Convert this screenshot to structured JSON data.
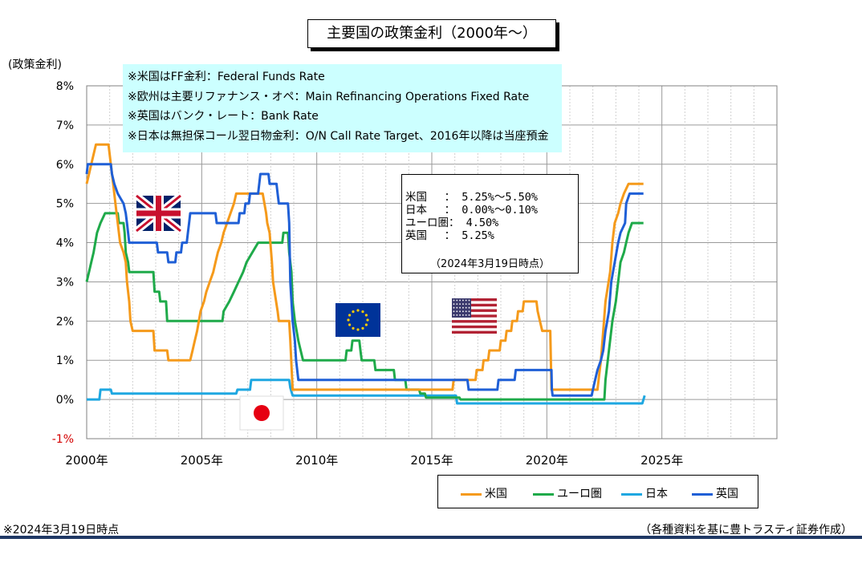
{
  "title": "主要国の政策金利（2000年～）",
  "notes": [
    "※米国はFF金利：Federal Funds Rate",
    "※欧州は主要リファナンス・オペ：Main Refinancing Operations Fixed Rate",
    "※英国はバンク・レート：Bank Rate",
    "※日本は無担保コール翌日物金利：O/N Call Rate Target、2016年以降は当座預金"
  ],
  "info_box": {
    "rows": [
      "米国　 ： 5.25%～5.50%",
      "日本　 ： 0.00%～0.10%",
      "ユーロ圏： 4.50%",
      "英国　 ： 5.25%"
    ],
    "date": "（2024年3月19日時点）"
  },
  "footer": {
    "left": "※2024年3月19日時点",
    "right": "（各種資料を基に豊トラスティ証券作成）"
  },
  "chart_data": {
    "type": "line",
    "title": "主要国の政策金利（2000年～）",
    "ylabel": "(政策金利)",
    "xlabel": "",
    "xlim": [
      2000,
      2030
    ],
    "ylim": [
      -1,
      8
    ],
    "x_ticks": [
      {
        "value": 2000,
        "label": "2000年"
      },
      {
        "value": 2005,
        "label": "2005年"
      },
      {
        "value": 2010,
        "label": "2010年"
      },
      {
        "value": 2015,
        "label": "2015年"
      },
      {
        "value": 2020,
        "label": "2020年"
      },
      {
        "value": 2025,
        "label": "2025年"
      }
    ],
    "y_ticks": [
      {
        "value": 8,
        "label": "8%"
      },
      {
        "value": 7,
        "label": "7%"
      },
      {
        "value": 6,
        "label": "6%"
      },
      {
        "value": 5,
        "label": "5%"
      },
      {
        "value": 4,
        "label": "4%"
      },
      {
        "value": 3,
        "label": "3%"
      },
      {
        "value": 2,
        "label": "2%"
      },
      {
        "value": 1,
        "label": "1%"
      },
      {
        "value": 0,
        "label": "0%"
      },
      {
        "value": -1,
        "label": "-1%"
      }
    ],
    "grid": true,
    "legend_position": "bottom-right",
    "series": [
      {
        "name": "米国",
        "color": "#f59a1b",
        "points": [
          [
            2000,
            5.5
          ],
          [
            2000.1,
            5.75
          ],
          [
            2000.2,
            6
          ],
          [
            2000.4,
            6.5
          ],
          [
            2000.95,
            6.5
          ],
          [
            2001.05,
            6
          ],
          [
            2001.15,
            5.5
          ],
          [
            2001.25,
            5
          ],
          [
            2001.35,
            4.5
          ],
          [
            2001.45,
            4
          ],
          [
            2001.6,
            3.75
          ],
          [
            2001.7,
            3.5
          ],
          [
            2001.75,
            3
          ],
          [
            2001.85,
            2.5
          ],
          [
            2001.9,
            2
          ],
          [
            2002,
            1.75
          ],
          [
            2002.9,
            1.75
          ],
          [
            2002.95,
            1.25
          ],
          [
            2003.5,
            1.25
          ],
          [
            2003.55,
            1
          ],
          [
            2004.5,
            1
          ],
          [
            2004.6,
            1.25
          ],
          [
            2004.7,
            1.5
          ],
          [
            2004.8,
            1.75
          ],
          [
            2004.95,
            2.25
          ],
          [
            2005.1,
            2.5
          ],
          [
            2005.2,
            2.75
          ],
          [
            2005.35,
            3
          ],
          [
            2005.5,
            3.25
          ],
          [
            2005.6,
            3.5
          ],
          [
            2005.7,
            3.75
          ],
          [
            2005.85,
            4
          ],
          [
            2005.95,
            4.25
          ],
          [
            2006.1,
            4.5
          ],
          [
            2006.25,
            4.75
          ],
          [
            2006.4,
            5
          ],
          [
            2006.5,
            5.25
          ],
          [
            2007.65,
            5.25
          ],
          [
            2007.8,
            4.75
          ],
          [
            2007.85,
            4.5
          ],
          [
            2007.95,
            4.25
          ],
          [
            2008.05,
            3.5
          ],
          [
            2008.1,
            3
          ],
          [
            2008.3,
            2.25
          ],
          [
            2008.35,
            2
          ],
          [
            2008.8,
            2
          ],
          [
            2008.85,
            1.5
          ],
          [
            2008.95,
            0.25
          ],
          [
            2015.9,
            0.25
          ],
          [
            2015.95,
            0.5
          ],
          [
            2016.9,
            0.5
          ],
          [
            2016.95,
            0.75
          ],
          [
            2017.2,
            0.75
          ],
          [
            2017.25,
            1
          ],
          [
            2017.45,
            1
          ],
          [
            2017.5,
            1.25
          ],
          [
            2017.95,
            1.25
          ],
          [
            2018,
            1.5
          ],
          [
            2018.2,
            1.5
          ],
          [
            2018.25,
            1.75
          ],
          [
            2018.45,
            1.75
          ],
          [
            2018.5,
            2
          ],
          [
            2018.7,
            2
          ],
          [
            2018.75,
            2.25
          ],
          [
            2018.95,
            2.25
          ],
          [
            2019,
            2.5
          ],
          [
            2019.55,
            2.5
          ],
          [
            2019.6,
            2.25
          ],
          [
            2019.7,
            2
          ],
          [
            2019.8,
            1.75
          ],
          [
            2020.15,
            1.75
          ],
          [
            2020.2,
            0.25
          ],
          [
            2022.2,
            0.25
          ],
          [
            2022.25,
            0.5
          ],
          [
            2022.35,
            1
          ],
          [
            2022.45,
            1.75
          ],
          [
            2022.55,
            2.5
          ],
          [
            2022.75,
            3.25
          ],
          [
            2022.85,
            4
          ],
          [
            2022.95,
            4.5
          ],
          [
            2023.1,
            4.75
          ],
          [
            2023.2,
            5
          ],
          [
            2023.35,
            5.25
          ],
          [
            2023.55,
            5.5
          ],
          [
            2024.2,
            5.5
          ]
        ]
      },
      {
        "name": "ユーロ圏",
        "color": "#1faa4a",
        "points": [
          [
            2000,
            3
          ],
          [
            2000.1,
            3.25
          ],
          [
            2000.2,
            3.5
          ],
          [
            2000.3,
            3.75
          ],
          [
            2000.45,
            4.25
          ],
          [
            2000.6,
            4.5
          ],
          [
            2000.8,
            4.75
          ],
          [
            2001.35,
            4.75
          ],
          [
            2001.4,
            4.5
          ],
          [
            2001.6,
            4.5
          ],
          [
            2001.65,
            4.25
          ],
          [
            2001.7,
            3.75
          ],
          [
            2001.8,
            3.5
          ],
          [
            2001.85,
            3.25
          ],
          [
            2002.9,
            3.25
          ],
          [
            2002.95,
            2.75
          ],
          [
            2003.15,
            2.75
          ],
          [
            2003.2,
            2.5
          ],
          [
            2003.45,
            2.5
          ],
          [
            2003.5,
            2
          ],
          [
            2005.9,
            2
          ],
          [
            2005.95,
            2.25
          ],
          [
            2006.2,
            2.5
          ],
          [
            2006.4,
            2.75
          ],
          [
            2006.6,
            3
          ],
          [
            2006.8,
            3.25
          ],
          [
            2006.95,
            3.5
          ],
          [
            2007.2,
            3.75
          ],
          [
            2007.45,
            4
          ],
          [
            2008.5,
            4
          ],
          [
            2008.55,
            4.25
          ],
          [
            2008.75,
            4.25
          ],
          [
            2008.8,
            3.75
          ],
          [
            2008.9,
            3.25
          ],
          [
            2008.95,
            2.5
          ],
          [
            2009.05,
            2
          ],
          [
            2009.2,
            1.5
          ],
          [
            2009.3,
            1.25
          ],
          [
            2009.4,
            1
          ],
          [
            2011.25,
            1
          ],
          [
            2011.3,
            1.25
          ],
          [
            2011.5,
            1.25
          ],
          [
            2011.55,
            1.5
          ],
          [
            2011.85,
            1.5
          ],
          [
            2011.9,
            1.25
          ],
          [
            2011.95,
            1
          ],
          [
            2012.5,
            1
          ],
          [
            2012.55,
            0.75
          ],
          [
            2013.35,
            0.75
          ],
          [
            2013.4,
            0.5
          ],
          [
            2013.85,
            0.5
          ],
          [
            2013.9,
            0.25
          ],
          [
            2014.45,
            0.25
          ],
          [
            2014.5,
            0.15
          ],
          [
            2014.7,
            0.15
          ],
          [
            2014.75,
            0.05
          ],
          [
            2016.2,
            0.05
          ],
          [
            2016.25,
            0
          ],
          [
            2022.5,
            0
          ],
          [
            2022.55,
            0.5
          ],
          [
            2022.7,
            1.25
          ],
          [
            2022.85,
            2
          ],
          [
            2023,
            2.5
          ],
          [
            2023.1,
            3
          ],
          [
            2023.2,
            3.5
          ],
          [
            2023.35,
            3.75
          ],
          [
            2023.45,
            4
          ],
          [
            2023.55,
            4.25
          ],
          [
            2023.7,
            4.5
          ],
          [
            2024.2,
            4.5
          ]
        ]
      },
      {
        "name": "日本",
        "color": "#1ea7e1",
        "points": [
          [
            2000,
            0
          ],
          [
            2000.55,
            0
          ],
          [
            2000.6,
            0.25
          ],
          [
            2001.05,
            0.25
          ],
          [
            2001.1,
            0.15
          ],
          [
            2006.5,
            0.15
          ],
          [
            2006.55,
            0.25
          ],
          [
            2007.1,
            0.25
          ],
          [
            2007.15,
            0.5
          ],
          [
            2008.8,
            0.5
          ],
          [
            2008.85,
            0.3
          ],
          [
            2008.95,
            0.1
          ],
          [
            2016.05,
            0.1
          ],
          [
            2016.1,
            -0.1
          ],
          [
            2024.15,
            -0.1
          ],
          [
            2024.25,
            0.1
          ]
        ]
      },
      {
        "name": "英国",
        "color": "#1f5fd6",
        "points": [
          [
            2000,
            5.75
          ],
          [
            2000.05,
            6
          ],
          [
            2001.05,
            6
          ],
          [
            2001.1,
            5.75
          ],
          [
            2001.2,
            5.5
          ],
          [
            2001.35,
            5.25
          ],
          [
            2001.6,
            5
          ],
          [
            2001.7,
            4.75
          ],
          [
            2001.75,
            4.5
          ],
          [
            2001.85,
            4
          ],
          [
            2003.05,
            4
          ],
          [
            2003.1,
            3.75
          ],
          [
            2003.5,
            3.75
          ],
          [
            2003.55,
            3.5
          ],
          [
            2003.85,
            3.5
          ],
          [
            2003.9,
            3.75
          ],
          [
            2004.1,
            3.75
          ],
          [
            2004.15,
            4
          ],
          [
            2004.35,
            4
          ],
          [
            2004.4,
            4.25
          ],
          [
            2004.45,
            4.5
          ],
          [
            2004.5,
            4.75
          ],
          [
            2005.6,
            4.75
          ],
          [
            2005.65,
            4.5
          ],
          [
            2006.6,
            4.5
          ],
          [
            2006.65,
            4.75
          ],
          [
            2006.85,
            4.75
          ],
          [
            2006.9,
            5
          ],
          [
            2007.05,
            5
          ],
          [
            2007.1,
            5.25
          ],
          [
            2007.45,
            5.25
          ],
          [
            2007.5,
            5.5
          ],
          [
            2007.55,
            5.75
          ],
          [
            2007.9,
            5.75
          ],
          [
            2007.95,
            5.5
          ],
          [
            2008.25,
            5.5
          ],
          [
            2008.3,
            5.25
          ],
          [
            2008.35,
            5
          ],
          [
            2008.75,
            5
          ],
          [
            2008.8,
            4.5
          ],
          [
            2008.85,
            3
          ],
          [
            2008.95,
            2
          ],
          [
            2009.05,
            1.5
          ],
          [
            2009.1,
            1
          ],
          [
            2009.2,
            0.5
          ],
          [
            2016.55,
            0.5
          ],
          [
            2016.6,
            0.25
          ],
          [
            2017.85,
            0.25
          ],
          [
            2017.9,
            0.5
          ],
          [
            2018.6,
            0.5
          ],
          [
            2018.65,
            0.75
          ],
          [
            2020.2,
            0.75
          ],
          [
            2020.22,
            0.25
          ],
          [
            2020.25,
            0.1
          ],
          [
            2021.95,
            0.1
          ],
          [
            2022.0,
            0.25
          ],
          [
            2022.1,
            0.5
          ],
          [
            2022.2,
            0.75
          ],
          [
            2022.35,
            1
          ],
          [
            2022.45,
            1.25
          ],
          [
            2022.55,
            1.75
          ],
          [
            2022.7,
            2.25
          ],
          [
            2022.8,
            3
          ],
          [
            2022.95,
            3.5
          ],
          [
            2023.1,
            4
          ],
          [
            2023.2,
            4.25
          ],
          [
            2023.4,
            4.5
          ],
          [
            2023.45,
            5
          ],
          [
            2023.6,
            5.25
          ],
          [
            2024.2,
            5.25
          ]
        ]
      }
    ]
  },
  "flags": [
    {
      "name": "uk-flag-icon"
    },
    {
      "name": "eu-flag-icon"
    },
    {
      "name": "us-flag-icon"
    },
    {
      "name": "japan-flag-icon"
    }
  ]
}
